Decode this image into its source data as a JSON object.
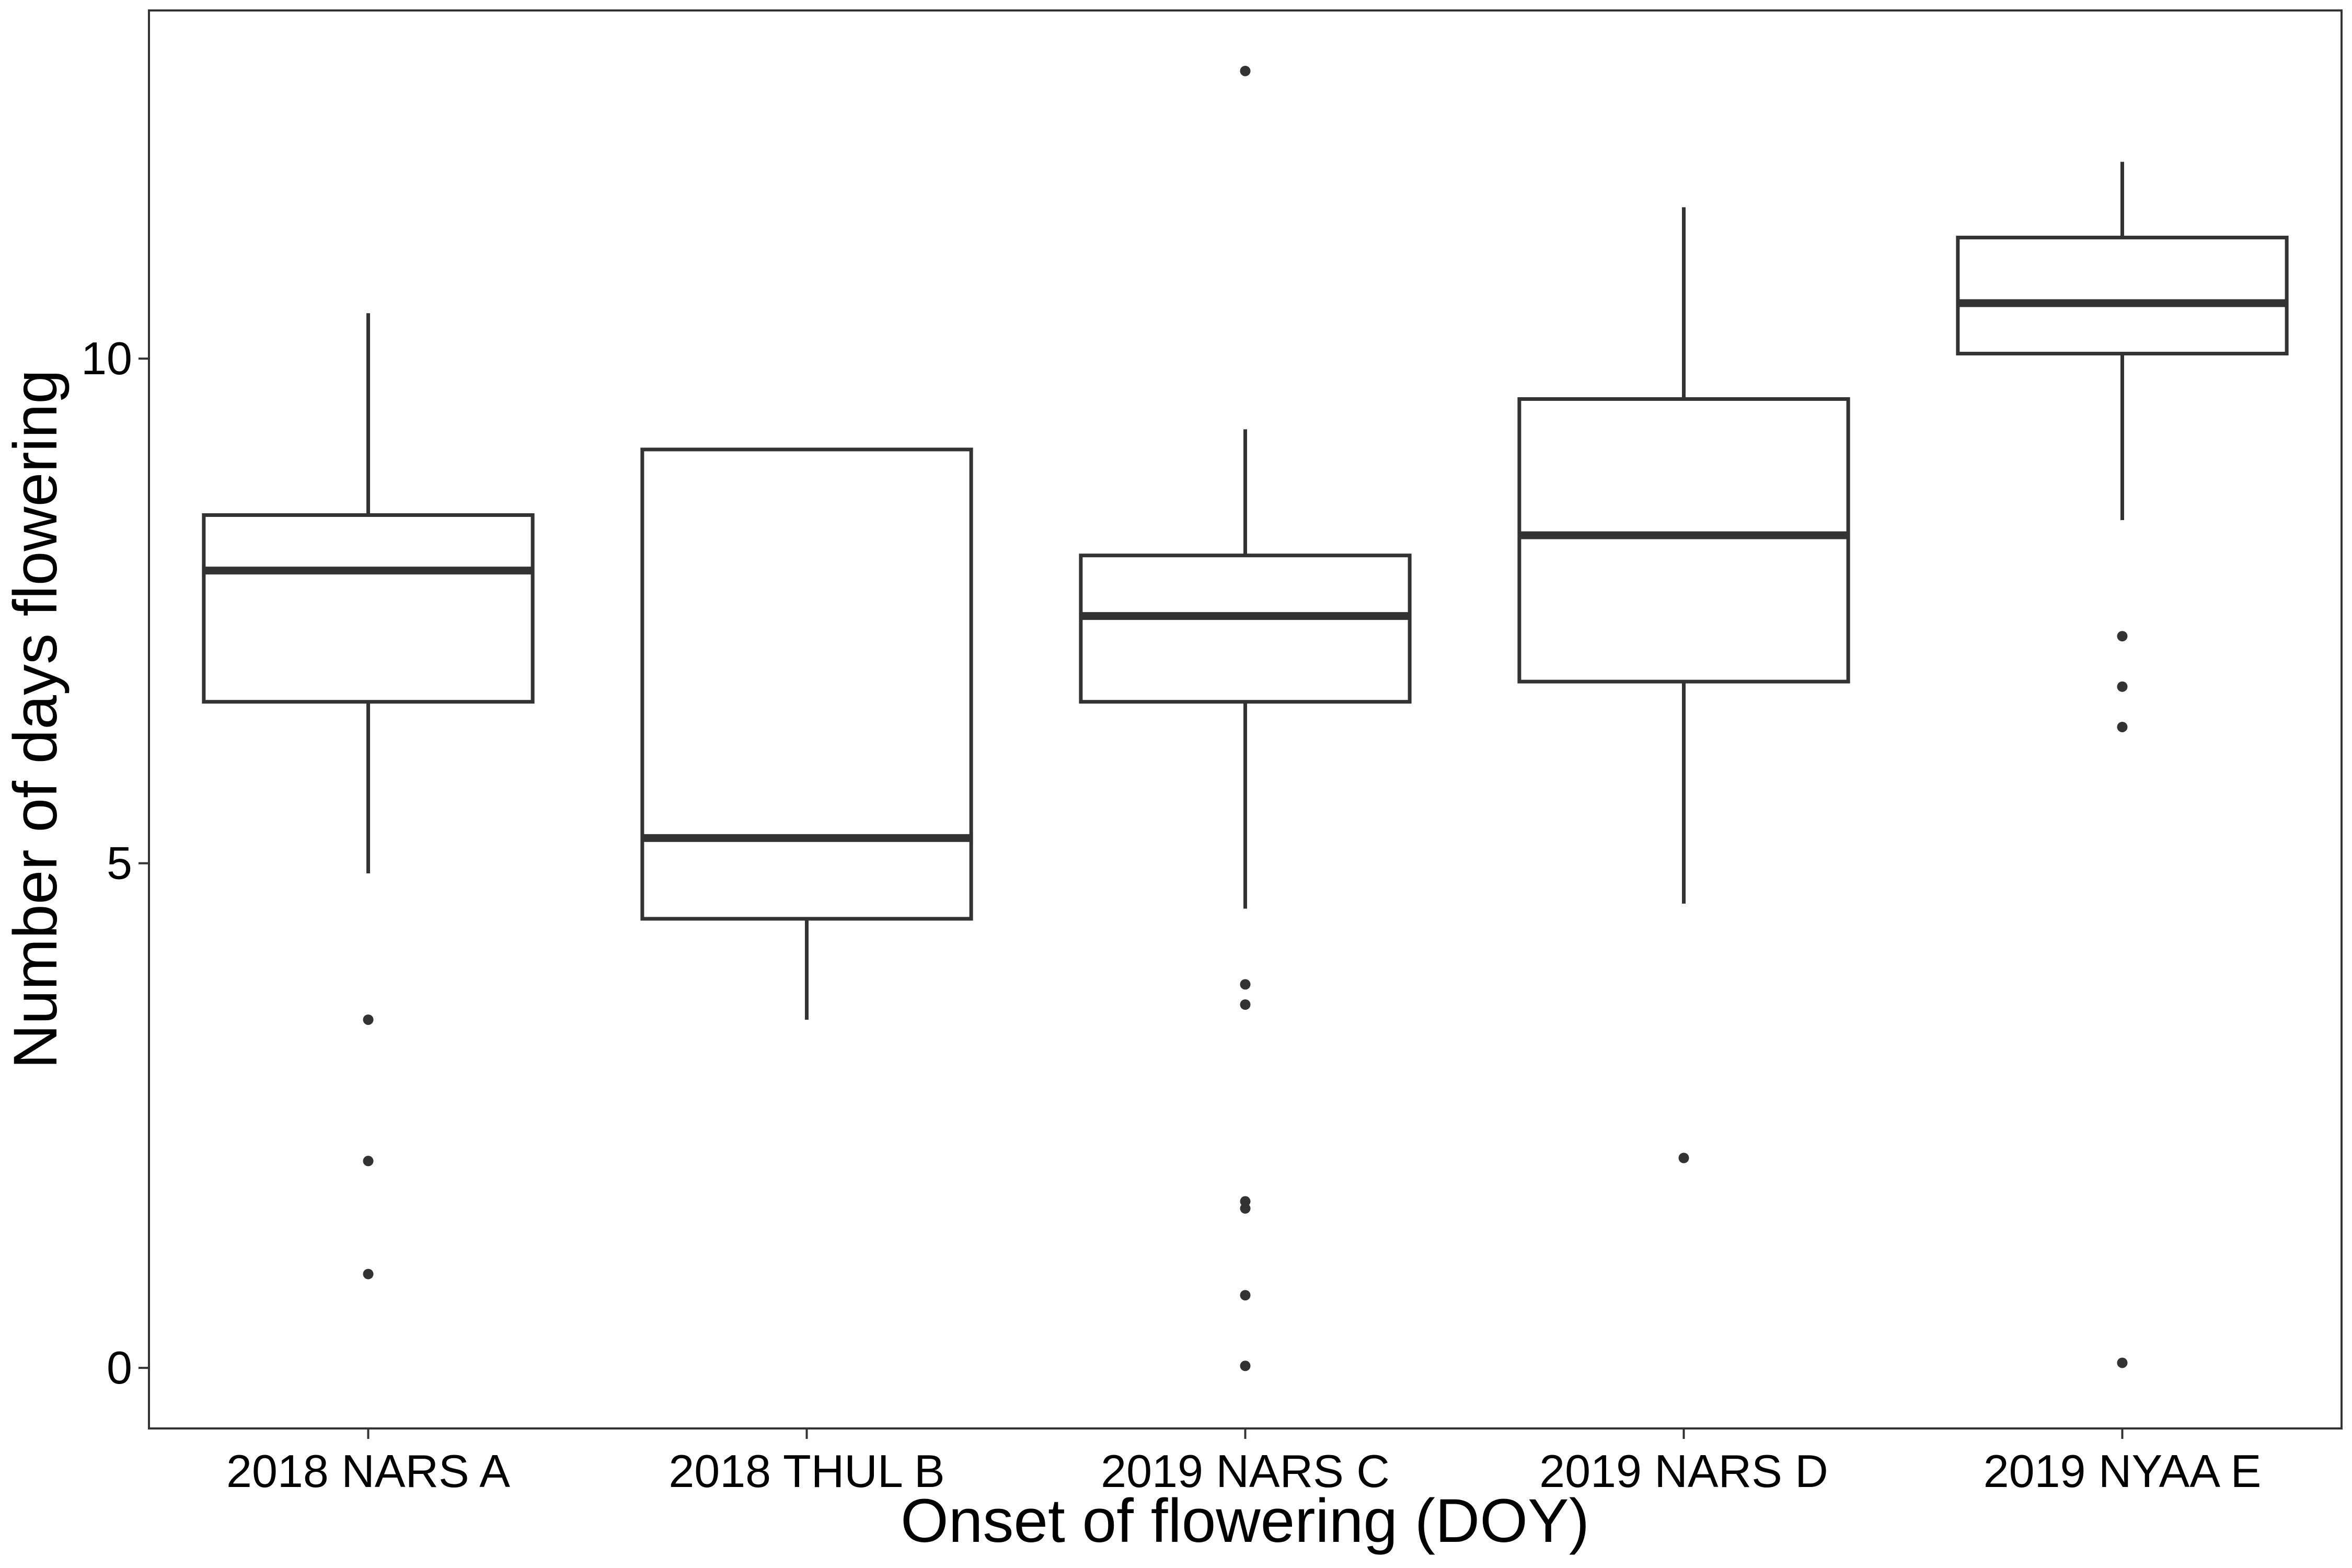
{
  "chart_data": {
    "type": "boxplot",
    "title": "",
    "xlabel": "Onset of flowering (DOY)",
    "ylabel": "Number of days flowering",
    "ylim": [
      -0.6,
      13.45
    ],
    "yticks": [
      0,
      5,
      10
    ],
    "grid": false,
    "legend": "none",
    "colors": {
      "box_stroke": "#333333",
      "outlier": "#333333",
      "frame": "#333333",
      "background": "#ffffff"
    },
    "categories": [
      "2018 NARS A",
      "2018 THUL B",
      "2019 NARS C",
      "2019 NARS D",
      "2019 NYAA E"
    ],
    "boxes": [
      {
        "category": "2018 NARS A",
        "whisker_low": 4.9,
        "q1": 6.6,
        "median": 7.9,
        "q3": 8.45,
        "whisker_high": 10.45,
        "outliers": [
          3.45,
          2.05,
          0.93
        ]
      },
      {
        "category": "2018 THUL B",
        "whisker_low": 3.45,
        "q1": 4.45,
        "median": 5.25,
        "q3": 9.1,
        "whisker_high": 9.1,
        "outliers": []
      },
      {
        "category": "2019 NARS C",
        "whisker_low": 4.55,
        "q1": 6.6,
        "median": 7.45,
        "q3": 8.05,
        "whisker_high": 9.3,
        "outliers": [
          12.85,
          3.8,
          3.6,
          1.65,
          1.58,
          0.72,
          0.02
        ]
      },
      {
        "category": "2019 NARS D",
        "whisker_low": 4.6,
        "q1": 6.8,
        "median": 8.25,
        "q3": 9.6,
        "whisker_high": 11.5,
        "outliers": [
          2.08
        ]
      },
      {
        "category": "2019 NYAA E",
        "whisker_low": 8.4,
        "q1": 10.05,
        "median": 10.55,
        "q3": 11.2,
        "whisker_high": 11.95,
        "outliers": [
          7.25,
          6.75,
          6.35,
          0.05
        ]
      }
    ]
  }
}
